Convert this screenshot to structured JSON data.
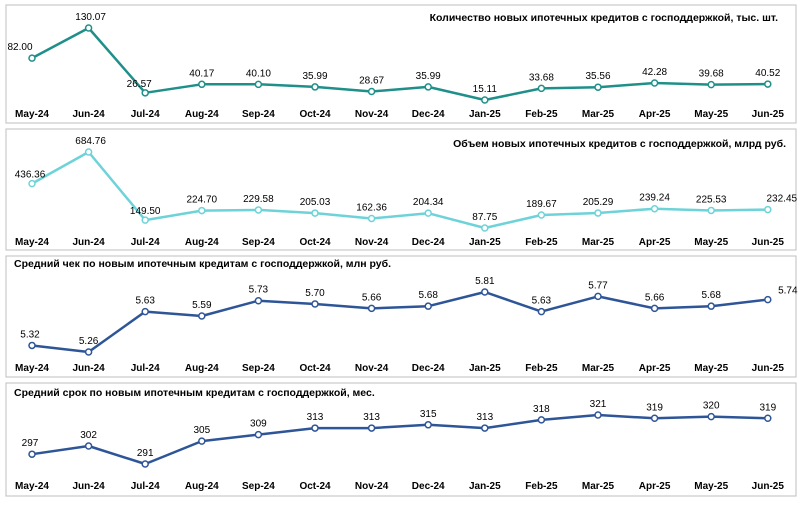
{
  "colors": {
    "panel1": "#1f8f8a",
    "panel2": "#6dd3d8",
    "panel3": "#2e5597",
    "panel4": "#2e5597",
    "marker_fill": "#ffffff",
    "frame": "#bfbfbf"
  },
  "chart_data": [
    {
      "type": "line",
      "title": "Количество новых ипотечных кредитов с господдержкой, тыс. шт.",
      "categories": [
        "May-24",
        "Jun-24",
        "Jul-24",
        "Aug-24",
        "Sep-24",
        "Oct-24",
        "Nov-24",
        "Dec-24",
        "Jan-25",
        "Feb-25",
        "Mar-25",
        "Apr-25",
        "May-25",
        "Jun-25"
      ],
      "values": [
        82.0,
        130.07,
        26.57,
        40.17,
        40.1,
        35.99,
        28.67,
        35.99,
        15.11,
        33.68,
        35.56,
        42.28,
        39.68,
        40.52
      ],
      "labels": [
        "82.00",
        "130.07",
        "26.57",
        "40.17",
        "40.10",
        "35.99",
        "28.67",
        "35.99",
        "15.11",
        "33.68",
        "35.56",
        "42.28",
        "39.68",
        "40.52"
      ],
      "title_position": "top-right",
      "grid": false
    },
    {
      "type": "line",
      "title": "Объем новых ипотечных кредитов с господдержкой, млрд руб.",
      "categories": [
        "May-24",
        "Jun-24",
        "Jul-24",
        "Aug-24",
        "Sep-24",
        "Oct-24",
        "Nov-24",
        "Dec-24",
        "Jan-25",
        "Feb-25",
        "Mar-25",
        "Apr-25",
        "May-25",
        "Jun-25"
      ],
      "values": [
        436.36,
        684.76,
        149.5,
        224.7,
        229.58,
        205.03,
        162.36,
        204.34,
        87.75,
        189.67,
        205.29,
        239.24,
        225.53,
        232.45
      ],
      "labels": [
        "436.36",
        "684.76",
        "149.50",
        "224.70",
        "229.58",
        "205.03",
        "162.36",
        "204.34",
        "87.75",
        "189.67",
        "205.29",
        "239.24",
        "225.53",
        "232.45"
      ],
      "title_position": "top-right",
      "grid": false
    },
    {
      "type": "line",
      "title": "Средний чек по новым ипотечным кредитам с господдержкой, млн руб.",
      "categories": [
        "May-24",
        "Jun-24",
        "Jul-24",
        "Aug-24",
        "Sep-24",
        "Oct-24",
        "Nov-24",
        "Dec-24",
        "Jan-25",
        "Feb-25",
        "Mar-25",
        "Apr-25",
        "May-25",
        "Jun-25"
      ],
      "values": [
        5.32,
        5.26,
        5.63,
        5.59,
        5.73,
        5.7,
        5.66,
        5.68,
        5.81,
        5.63,
        5.77,
        5.66,
        5.68,
        5.74
      ],
      "labels": [
        "5.32",
        "5.26",
        "5.63",
        "5.59",
        "5.73",
        "5.70",
        "5.66",
        "5.68",
        "5.81",
        "5.63",
        "5.77",
        "5.66",
        "5.68",
        "5.74"
      ],
      "title_position": "top-left",
      "grid": false
    },
    {
      "type": "line",
      "title": "Средний срок по новым ипотечным кредитам с господдержкой, мес.",
      "categories": [
        "May-24",
        "Jun-24",
        "Jul-24",
        "Aug-24",
        "Sep-24",
        "Oct-24",
        "Nov-24",
        "Dec-24",
        "Jan-25",
        "Feb-25",
        "Mar-25",
        "Apr-25",
        "May-25",
        "Jun-25"
      ],
      "values": [
        297,
        302,
        291,
        305,
        309,
        313,
        313,
        315,
        313,
        318,
        321,
        319,
        320,
        319
      ],
      "labels": [
        "297",
        "302",
        "291",
        "305",
        "309",
        "313",
        "313",
        "315",
        "313",
        "318",
        "321",
        "319",
        "320",
        "319"
      ],
      "title_position": "top-left",
      "grid": false
    }
  ]
}
